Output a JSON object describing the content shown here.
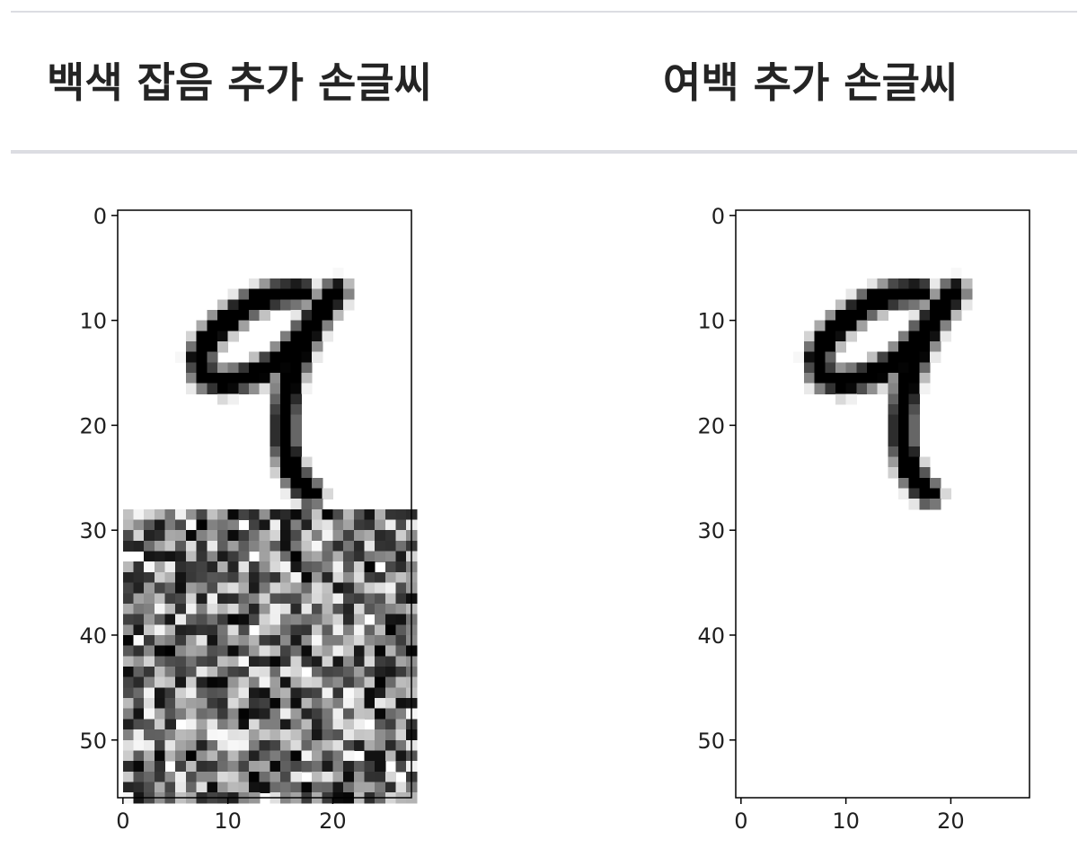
{
  "headers": {
    "left": "백색 잡음 추가 손글씨",
    "right": "여백 추가 손글씨"
  },
  "chart_data": [
    {
      "type": "heatmap",
      "cmap": "gray_r",
      "image_size": [
        56,
        28
      ],
      "xlim": [
        -0.5,
        27.5
      ],
      "ylim": [
        55.5,
        -0.5
      ],
      "xticks": [
        0,
        10,
        20
      ],
      "yticks": [
        0,
        10,
        20,
        30,
        40,
        50
      ],
      "digit_rows": [
        0,
        27
      ],
      "noise_rows": [
        28,
        55
      ],
      "digit_strokes": [
        [
          [
            16.5,
            6.8
          ],
          [
            14,
            7
          ],
          [
            11.5,
            8
          ],
          [
            9,
            9.8
          ],
          [
            7.5,
            11.5
          ],
          [
            6.8,
            13
          ],
          [
            7.2,
            14.8
          ],
          [
            9.2,
            15.4
          ],
          [
            12,
            14.7
          ],
          [
            14.6,
            13.2
          ],
          [
            16.6,
            11
          ],
          [
            18.4,
            8.6
          ],
          [
            19.8,
            6.8
          ]
        ],
        [
          [
            19.8,
            6.8
          ],
          [
            17.8,
            9.6
          ],
          [
            16.4,
            12.4
          ],
          [
            15.3,
            15.4
          ],
          [
            14.9,
            18.6
          ],
          [
            14.9,
            21.2
          ],
          [
            15.5,
            23.6
          ],
          [
            16.6,
            25.3
          ],
          [
            17.4,
            26
          ]
        ]
      ]
    },
    {
      "type": "heatmap",
      "cmap": "gray_r",
      "image_size": [
        56,
        28
      ],
      "xlim": [
        -0.5,
        27.5
      ],
      "ylim": [
        55.5,
        -0.5
      ],
      "xticks": [
        0,
        10,
        20
      ],
      "yticks": [
        0,
        10,
        20,
        30,
        40,
        50
      ],
      "digit_rows": [
        0,
        27
      ],
      "digit_strokes": [
        [
          [
            16.5,
            6.8
          ],
          [
            14,
            7
          ],
          [
            11.5,
            8
          ],
          [
            9,
            9.8
          ],
          [
            7.5,
            11.5
          ],
          [
            6.8,
            13
          ],
          [
            7.2,
            14.8
          ],
          [
            9.2,
            15.4
          ],
          [
            12,
            14.7
          ],
          [
            14.6,
            13.2
          ],
          [
            16.6,
            11
          ],
          [
            18.4,
            8.6
          ],
          [
            19.8,
            6.8
          ]
        ],
        [
          [
            19.8,
            6.8
          ],
          [
            17.8,
            9.6
          ],
          [
            16.4,
            12.4
          ],
          [
            15.3,
            15.4
          ],
          [
            14.9,
            18.6
          ],
          [
            14.9,
            21.2
          ],
          [
            15.5,
            23.6
          ],
          [
            16.6,
            25.3
          ],
          [
            17.4,
            26
          ]
        ]
      ]
    }
  ]
}
